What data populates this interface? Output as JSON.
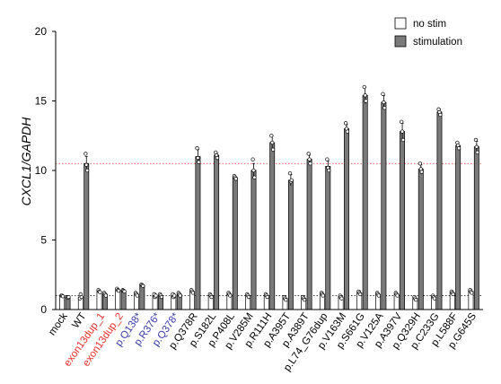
{
  "chart_data": {
    "type": "bar",
    "ylabel": "CXCL1/GAPDH",
    "ylim": [
      0,
      20
    ],
    "yticks": [
      0,
      5,
      10,
      15,
      20
    ],
    "legend_position": "top-right",
    "reference_lines": [
      {
        "y": 10.5,
        "color": "#e8312b",
        "style": "dotted"
      },
      {
        "y": 1.0,
        "color": "#000000",
        "style": "dotted"
      }
    ],
    "categories": [
      {
        "label": "mock",
        "color": "#000000"
      },
      {
        "label": "WT",
        "color": "#000000"
      },
      {
        "label": "exon13dup_1",
        "color": "#e8312b"
      },
      {
        "label": "exon13dup_2",
        "color": "#e8312b"
      },
      {
        "label": "p.Q138*",
        "color": "#3a3aa8"
      },
      {
        "label": "p.R376*",
        "color": "#3a3aa8"
      },
      {
        "label": "p.Q378*",
        "color": "#3a3aa8"
      },
      {
        "label": "p.Q378R",
        "color": "#000000"
      },
      {
        "label": "p.S182L",
        "color": "#000000"
      },
      {
        "label": "p.P408L",
        "color": "#000000"
      },
      {
        "label": "p.V285M",
        "color": "#000000"
      },
      {
        "label": "p.R111H",
        "color": "#000000"
      },
      {
        "label": "p.A395T",
        "color": "#000000"
      },
      {
        "label": "p.A389T",
        "color": "#000000"
      },
      {
        "label": "p.L74_G76dup",
        "color": "#000000"
      },
      {
        "label": "p.V163M",
        "color": "#000000"
      },
      {
        "label": "p.S661G",
        "color": "#000000"
      },
      {
        "label": "p.V125A",
        "color": "#000000"
      },
      {
        "label": "p.A397V",
        "color": "#000000"
      },
      {
        "label": "p.Q329H",
        "color": "#000000"
      },
      {
        "label": "p.C233G",
        "color": "#000000"
      },
      {
        "label": "p.L588F",
        "color": "#000000"
      },
      {
        "label": "p.G645S",
        "color": "#000000"
      }
    ],
    "series": [
      {
        "name": "no stim",
        "fill": "#ffffff",
        "values": [
          1.0,
          0.9,
          1.3,
          1.4,
          1.1,
          1.0,
          1.0,
          1.3,
          1.0,
          1.1,
          1.0,
          1.0,
          0.8,
          0.8,
          1.1,
          0.9,
          1.2,
          1.1,
          1.1,
          0.8,
          0.9,
          1.2,
          1.3
        ],
        "errors": [
          0.05,
          0.2,
          0.1,
          0.1,
          0.1,
          0.15,
          0.15,
          0.1,
          0.1,
          0.1,
          0.1,
          0.1,
          0.1,
          0.1,
          0.15,
          0.1,
          0.15,
          0.1,
          0.1,
          0.1,
          0.1,
          0.15,
          0.15
        ],
        "points": [
          [
            1.0,
            1.0,
            0.95
          ],
          [
            0.8,
            1.1,
            0.9
          ],
          [
            1.4,
            1.3,
            1.25
          ],
          [
            1.5,
            1.4,
            1.35
          ],
          [
            1.2,
            1.1,
            1.0
          ],
          [
            1.1,
            0.9,
            1.0
          ],
          [
            1.1,
            0.9,
            1.0
          ],
          [
            1.4,
            1.3,
            1.2
          ],
          [
            1.1,
            1.0,
            0.9
          ],
          [
            1.2,
            1.1,
            1.0
          ],
          [
            1.1,
            1.0,
            0.9
          ],
          [
            1.1,
            1.0,
            0.9
          ],
          [
            0.9,
            0.8,
            0.7
          ],
          [
            0.9,
            0.8,
            0.7
          ],
          [
            1.2,
            1.1,
            1.0
          ],
          [
            1.0,
            0.9,
            0.8
          ],
          [
            1.3,
            1.2,
            1.1
          ],
          [
            1.2,
            1.1,
            1.0
          ],
          [
            1.2,
            1.1,
            1.0
          ],
          [
            0.9,
            0.8,
            0.7
          ],
          [
            1.0,
            0.9,
            0.8
          ],
          [
            1.3,
            1.2,
            1.1
          ],
          [
            1.4,
            1.3,
            1.2
          ]
        ]
      },
      {
        "name": "stimulation",
        "fill": "#7a7a7a",
        "values": [
          0.9,
          10.5,
          1.1,
          1.35,
          1.75,
          1.0,
          1.1,
          11.0,
          11.1,
          9.5,
          10.0,
          12.0,
          9.3,
          10.8,
          10.3,
          13.0,
          15.4,
          14.9,
          12.8,
          10.1,
          14.2,
          11.8,
          11.7
        ],
        "errors": [
          0.05,
          0.5,
          0.05,
          0.1,
          0.1,
          0.1,
          0.1,
          0.5,
          0.15,
          0.1,
          0.5,
          0.5,
          0.4,
          0.3,
          0.4,
          0.3,
          0.6,
          0.5,
          0.6,
          0.3,
          0.2,
          0.2,
          0.4
        ],
        "points": [
          [
            0.9,
            0.85,
            0.9
          ],
          [
            11.2,
            10.4,
            10.0
          ],
          [
            1.2,
            1.1,
            1.0
          ],
          [
            1.4,
            1.35,
            1.3
          ],
          [
            1.8,
            1.75,
            1.7
          ],
          [
            1.1,
            1.0,
            0.9
          ],
          [
            1.2,
            1.1,
            1.0
          ],
          [
            11.6,
            10.9,
            10.6
          ],
          [
            11.3,
            11.1,
            10.9
          ],
          [
            9.6,
            9.5,
            9.4
          ],
          [
            10.8,
            10.0,
            9.5
          ],
          [
            12.5,
            12.0,
            11.5
          ],
          [
            9.8,
            9.2,
            9.3
          ],
          [
            11.2,
            10.8,
            10.5
          ],
          [
            10.8,
            10.2,
            10.0
          ],
          [
            13.4,
            13.0,
            12.8
          ],
          [
            16.0,
            15.4,
            15.0
          ],
          [
            15.5,
            14.9,
            14.5
          ],
          [
            13.5,
            12.8,
            12.2
          ],
          [
            10.5,
            10.1,
            9.9
          ],
          [
            14.4,
            14.2,
            14.0
          ],
          [
            12.0,
            11.8,
            11.6
          ],
          [
            12.2,
            11.7,
            11.3
          ]
        ]
      }
    ]
  }
}
